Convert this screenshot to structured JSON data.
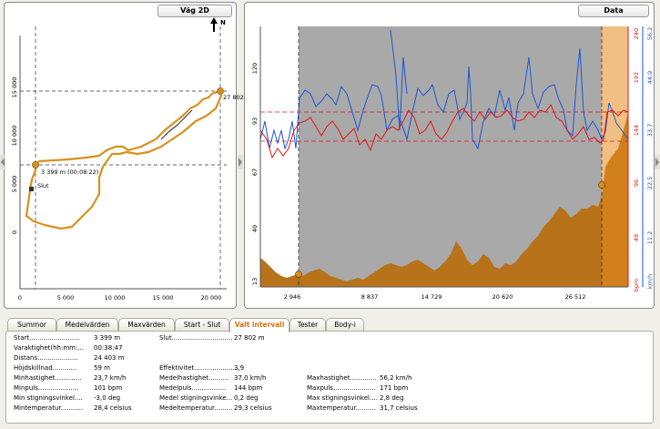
{
  "map_panel": {
    "title": "Väg 2D",
    "north_label": "N",
    "y_ticks": [
      "0",
      "5 000",
      "10 000",
      "15 000"
    ],
    "x_ticks": [
      "0",
      "5 000",
      "10 000",
      "15 000",
      "20 000"
    ],
    "start_marker_label": "3 399 m (00:08:22)",
    "end_marker_label": "27 802",
    "slut_label": "Slut",
    "track_color": "#d9901e"
  },
  "data_panel": {
    "title": "Data",
    "left_ticks": [
      "120",
      "93",
      "67",
      "40",
      "13"
    ],
    "x_ticks": [
      "2 946",
      "8 837",
      "14 729",
      "20 620",
      "26 512"
    ],
    "bpm_ticks": [
      "240",
      "192",
      "144",
      "96",
      "48"
    ],
    "bpm_label": "bpm",
    "kmh_ticks": [
      "56,2",
      "44,9",
      "33,7",
      "22,5",
      "11,2"
    ],
    "kmh_label": "km/h",
    "colors": {
      "heart": "#e01818",
      "speed": "#1a56d6",
      "elevation": "#b8731a",
      "selection": "#a9a9a9"
    }
  },
  "tabs": [
    "Summor",
    "Medelvärden",
    "Maxvärden",
    "Start - Slut",
    "Valt intervall",
    "Tester",
    "Body-i"
  ],
  "active_tab": "Valt intervall",
  "summary": {
    "col1": [
      {
        "label": "Start.........................",
        "value": "3 399 m"
      },
      {
        "label": "Varaktighet(hh:mm:...",
        "value": "00:38:47"
      },
      {
        "label": "Distans....................",
        "value": "24 403 m"
      },
      {
        "label": "Höjdskillnad............",
        "value": "59 m"
      },
      {
        "label": "Minhastighet.............",
        "value": "23,7 km/h"
      },
      {
        "label": "Minpuls....................",
        "value": "101 bpm"
      },
      {
        "label": "Min stigningsvinkel....",
        "value": "-3,0 deg"
      },
      {
        "label": "Mintemperatur...........",
        "value": "28,4 celsius"
      }
    ],
    "col2": [
      {
        "label": "Slut..............................",
        "value": "27 802 m",
        "row": 0
      },
      {
        "label": "Effektivitet......................",
        "value": "3,9",
        "row": 4
      },
      {
        "label": "Medelhastighet..........",
        "value": "37,0 km/h",
        "row": 5
      },
      {
        "label": "Medelpuls.................",
        "value": "144 bpm",
        "row": 6
      },
      {
        "label": "Medel stigningsvinke...",
        "value": "0,2 deg",
        "row": 7
      },
      {
        "label": "Medeltemperatur.........",
        "value": "29,3 celsius",
        "row": 8
      }
    ],
    "col3": [
      {
        "label": "Maxhastighet.............",
        "value": "56,2 km/h",
        "row": 5
      },
      {
        "label": "Maxpuls.....................",
        "value": "171 bpm",
        "row": 6
      },
      {
        "label": "Max stigningsvinkel....",
        "value": "2,8 deg",
        "row": 7
      },
      {
        "label": "Maxtemperatur..........",
        "value": "31,7 celsius",
        "row": 8
      }
    ]
  }
}
